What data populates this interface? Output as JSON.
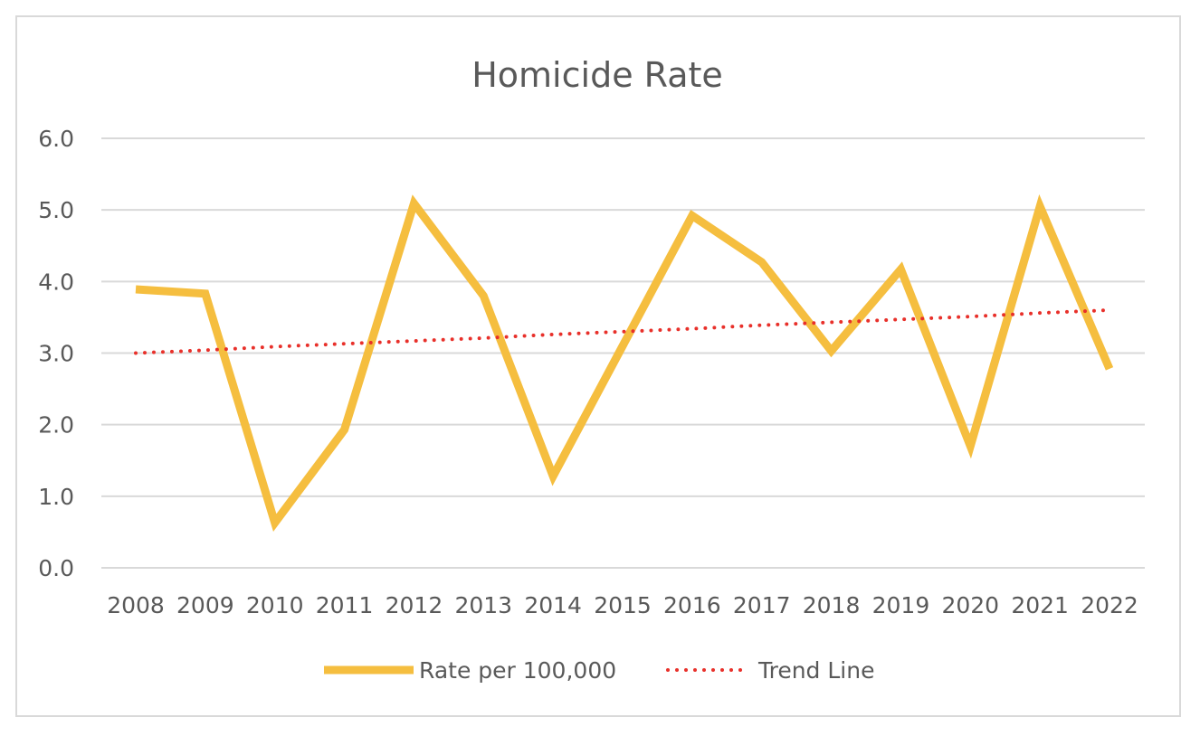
{
  "chart_data": {
    "type": "line",
    "title": "Homicide Rate",
    "xlabel": "",
    "ylabel": "",
    "categories": [
      "2008",
      "2009",
      "2010",
      "2011",
      "2012",
      "2013",
      "2014",
      "2015",
      "2016",
      "2017",
      "2018",
      "2019",
      "2020",
      "2021",
      "2022"
    ],
    "series": [
      {
        "name": "Rate per 100,000",
        "color": "#F5BE3F",
        "style": "solid",
        "values": [
          3.89,
          3.83,
          0.63,
          1.93,
          5.09,
          3.8,
          1.28,
          3.1,
          4.92,
          4.27,
          3.03,
          4.17,
          1.7,
          5.05,
          2.78
        ]
      },
      {
        "name": "Trend Line",
        "color": "#E8302A",
        "style": "dotted",
        "values": [
          3.0,
          3.04,
          3.09,
          3.13,
          3.17,
          3.21,
          3.26,
          3.3,
          3.34,
          3.39,
          3.43,
          3.47,
          3.51,
          3.56,
          3.6
        ]
      }
    ],
    "ylim": [
      0,
      6
    ],
    "yticks": [
      "0.0",
      "1.0",
      "2.0",
      "3.0",
      "4.0",
      "5.0",
      "6.0"
    ],
    "grid": true,
    "legend": "bottom"
  }
}
